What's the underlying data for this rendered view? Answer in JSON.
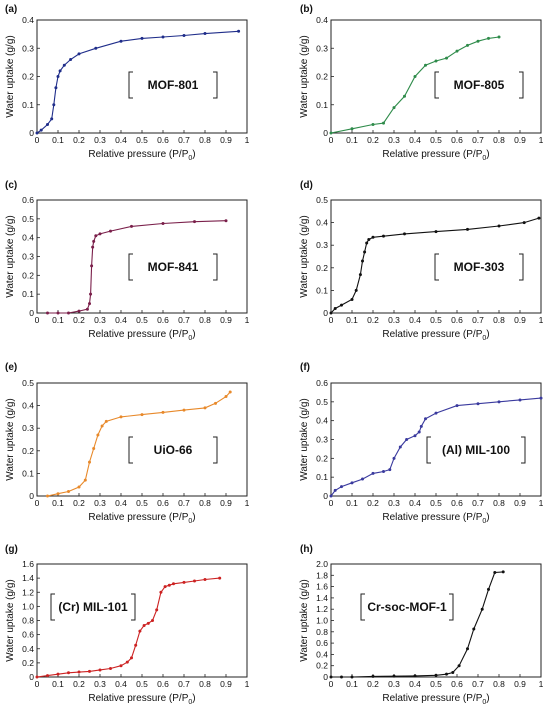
{
  "chart_data": [
    {
      "panel": "(a)",
      "type": "line",
      "label": "MOF-801",
      "color": "#1f2d8a",
      "xlabel": "Relative pressure (P/P",
      "xlabel_sub": "0",
      "xlabel_tail": ")",
      "ylabel": "Water uptake (g/g)",
      "xlim": [
        0,
        1.0
      ],
      "ylim": [
        0,
        0.4
      ],
      "xticks": [
        "0",
        "0.1",
        "0.2",
        "0.3",
        "0.4",
        "0.5",
        "0.6",
        "0.7",
        "0.8",
        "0.9",
        "1"
      ],
      "yticks": [
        "0",
        "0.1",
        "0.2",
        "0.3",
        "0.4"
      ],
      "series": [
        {
          "x": [
            0.0,
            0.02,
            0.05,
            0.07,
            0.08,
            0.09,
            0.1,
            0.11,
            0.13,
            0.16,
            0.2,
            0.28,
            0.4,
            0.5,
            0.6,
            0.7,
            0.8,
            0.96
          ],
          "y": [
            0.0,
            0.01,
            0.03,
            0.05,
            0.1,
            0.16,
            0.2,
            0.22,
            0.24,
            0.26,
            0.28,
            0.3,
            0.325,
            0.335,
            0.34,
            0.345,
            0.352,
            0.36
          ]
        }
      ]
    },
    {
      "panel": "(b)",
      "type": "line",
      "label": "MOF-805",
      "color": "#2e8b4a",
      "xlabel": "Relative pressure (P/P",
      "xlabel_sub": "0",
      "xlabel_tail": ")",
      "ylabel": "Water uptake (g/g)",
      "xlim": [
        0,
        1.0
      ],
      "ylim": [
        0,
        0.4
      ],
      "xticks": [
        "0",
        "0.1",
        "0.2",
        "0.3",
        "0.4",
        "0.5",
        "0.6",
        "0.7",
        "0.8",
        "0.9",
        "1"
      ],
      "yticks": [
        "0",
        "0.1",
        "0.2",
        "0.3",
        "0.4"
      ],
      "series": [
        {
          "x": [
            0.0,
            0.1,
            0.2,
            0.25,
            0.3,
            0.35,
            0.4,
            0.45,
            0.5,
            0.55,
            0.6,
            0.65,
            0.7,
            0.75,
            0.8
          ],
          "y": [
            0.0,
            0.015,
            0.03,
            0.035,
            0.09,
            0.13,
            0.2,
            0.24,
            0.255,
            0.265,
            0.29,
            0.31,
            0.325,
            0.335,
            0.34
          ]
        }
      ]
    },
    {
      "panel": "(c)",
      "type": "line",
      "label": "MOF-841",
      "color": "#7a1f4a",
      "xlabel": "Relative pressure (P/P",
      "xlabel_sub": "0",
      "xlabel_tail": ")",
      "ylabel": "Water uptake (g/g)",
      "xlim": [
        0,
        1.0
      ],
      "ylim": [
        0,
        0.6
      ],
      "xticks": [
        "0",
        "0.1",
        "0.2",
        "0.3",
        "0.4",
        "0.5",
        "0.6",
        "0.7",
        "0.8",
        "0.9",
        "1"
      ],
      "yticks": [
        "0",
        "0.1",
        "0.2",
        "0.3",
        "0.4",
        "0.5",
        "0.6"
      ],
      "series": [
        {
          "x": [
            0.05,
            0.1,
            0.15,
            0.2,
            0.24,
            0.25,
            0.255,
            0.26,
            0.265,
            0.27,
            0.28,
            0.3,
            0.35,
            0.45,
            0.6,
            0.75,
            0.9
          ],
          "y": [
            0.0,
            0.0,
            0.0,
            0.01,
            0.02,
            0.05,
            0.1,
            0.25,
            0.35,
            0.38,
            0.41,
            0.42,
            0.435,
            0.46,
            0.475,
            0.485,
            0.49
          ]
        }
      ]
    },
    {
      "panel": "(d)",
      "type": "line",
      "label": "MOF-303",
      "color": "#111111",
      "xlabel": "Relative pressure (P/P",
      "xlabel_sub": "0",
      "xlabel_tail": ")",
      "ylabel": "Water uptake (g/g)",
      "xlim": [
        0,
        1.0
      ],
      "ylim": [
        0,
        0.5
      ],
      "xticks": [
        "0",
        "0.1",
        "0.2",
        "0.3",
        "0.4",
        "0.5",
        "0.6",
        "0.7",
        "0.8",
        "0.9",
        "1"
      ],
      "yticks": [
        "0",
        "0.1",
        "0.2",
        "0.3",
        "0.4",
        "0.5"
      ],
      "series": [
        {
          "x": [
            0.0,
            0.02,
            0.05,
            0.1,
            0.12,
            0.14,
            0.15,
            0.16,
            0.17,
            0.18,
            0.2,
            0.25,
            0.35,
            0.5,
            0.65,
            0.8,
            0.92,
            0.99
          ],
          "y": [
            0.0,
            0.02,
            0.035,
            0.06,
            0.1,
            0.17,
            0.23,
            0.27,
            0.31,
            0.325,
            0.335,
            0.34,
            0.35,
            0.36,
            0.37,
            0.385,
            0.4,
            0.42
          ]
        }
      ]
    },
    {
      "panel": "(e)",
      "type": "line",
      "label": "UiO-66",
      "color": "#e8892a",
      "xlabel": "Relative pressure (P/P",
      "xlabel_sub": "0",
      "xlabel_tail": ")",
      "ylabel": "Water uptake (g/g)",
      "xlim": [
        0,
        1.0
      ],
      "ylim": [
        0,
        0.5
      ],
      "xticks": [
        "0",
        "0.1",
        "0.2",
        "0.3",
        "0.4",
        "0.5",
        "0.6",
        "0.7",
        "0.8",
        "0.9",
        "1"
      ],
      "yticks": [
        "0",
        "0.1",
        "0.2",
        "0.3",
        "0.4",
        "0.5"
      ],
      "series": [
        {
          "x": [
            0.05,
            0.1,
            0.15,
            0.2,
            0.23,
            0.25,
            0.27,
            0.29,
            0.31,
            0.33,
            0.4,
            0.5,
            0.6,
            0.7,
            0.8,
            0.85,
            0.9,
            0.92
          ],
          "y": [
            0.0,
            0.01,
            0.02,
            0.04,
            0.07,
            0.15,
            0.21,
            0.27,
            0.31,
            0.33,
            0.35,
            0.36,
            0.37,
            0.38,
            0.39,
            0.41,
            0.44,
            0.46
          ]
        }
      ]
    },
    {
      "panel": "(f)",
      "type": "line",
      "label": "(Al) MIL-100",
      "color": "#3a3a9e",
      "xlabel": "Relative pressure (P/P",
      "xlabel_sub": "0",
      "xlabel_tail": ")",
      "ylabel": "Water uptake (g/g)",
      "xlim": [
        0,
        1.0
      ],
      "ylim": [
        0,
        0.6
      ],
      "xticks": [
        "0",
        "0.1",
        "0.2",
        "0.3",
        "0.4",
        "0.5",
        "0.6",
        "0.7",
        "0.8",
        "0.9",
        "1"
      ],
      "yticks": [
        "0",
        "0.1",
        "0.2",
        "0.3",
        "0.4",
        "0.5",
        "0.6"
      ],
      "series": [
        {
          "x": [
            0.0,
            0.02,
            0.05,
            0.1,
            0.15,
            0.2,
            0.25,
            0.28,
            0.3,
            0.33,
            0.36,
            0.4,
            0.42,
            0.43,
            0.45,
            0.5,
            0.6,
            0.7,
            0.8,
            0.9,
            1.0
          ],
          "y": [
            0.0,
            0.03,
            0.05,
            0.07,
            0.09,
            0.12,
            0.13,
            0.14,
            0.2,
            0.26,
            0.3,
            0.32,
            0.34,
            0.37,
            0.41,
            0.44,
            0.48,
            0.49,
            0.5,
            0.51,
            0.52
          ]
        }
      ]
    },
    {
      "panel": "(g)",
      "type": "line",
      "label": "(Cr) MIL-101",
      "color": "#cc2222",
      "xlabel": "Relative pressure (P/P",
      "xlabel_sub": "0",
      "xlabel_tail": ")",
      "ylabel": "Water uptake (g/g)",
      "xlim": [
        0,
        1.0
      ],
      "ylim": [
        0,
        1.6
      ],
      "xticks": [
        "0",
        "0.1",
        "0.2",
        "0.3",
        "0.4",
        "0.5",
        "0.6",
        "0.7",
        "0.8",
        "0.9",
        "1"
      ],
      "yticks": [
        "0",
        "0.2",
        "0.4",
        "0.6",
        "0.8",
        "1.0",
        "1.2",
        "1.4",
        "1.6"
      ],
      "series": [
        {
          "x": [
            0.0,
            0.05,
            0.1,
            0.15,
            0.2,
            0.25,
            0.3,
            0.35,
            0.4,
            0.43,
            0.45,
            0.47,
            0.49,
            0.51,
            0.53,
            0.55,
            0.57,
            0.59,
            0.61,
            0.63,
            0.65,
            0.7,
            0.75,
            0.8,
            0.87
          ],
          "y": [
            0.0,
            0.02,
            0.04,
            0.06,
            0.07,
            0.08,
            0.1,
            0.12,
            0.16,
            0.21,
            0.27,
            0.45,
            0.65,
            0.73,
            0.76,
            0.8,
            0.95,
            1.2,
            1.28,
            1.3,
            1.32,
            1.34,
            1.36,
            1.38,
            1.4
          ]
        }
      ]
    },
    {
      "panel": "(h)",
      "type": "line",
      "label": "Cr-soc-MOF-1",
      "color": "#111111",
      "xlabel": "Relative pressure (P/P",
      "xlabel_sub": "0",
      "xlabel_tail": ")",
      "ylabel": "Water uptake (g/g)",
      "xlim": [
        0,
        1.0
      ],
      "ylim": [
        0,
        2.0
      ],
      "xticks": [
        "0",
        "0.1",
        "0.2",
        "0.3",
        "0.4",
        "0.5",
        "0.6",
        "0.7",
        "0.8",
        "0.9",
        "1"
      ],
      "yticks": [
        "0",
        "0.2",
        "0.4",
        "0.6",
        "0.8",
        "1.0",
        "1.2",
        "1.4",
        "1.6",
        "1.8",
        "2.0"
      ],
      "series": [
        {
          "x": [
            0.0,
            0.05,
            0.1,
            0.2,
            0.3,
            0.4,
            0.5,
            0.55,
            0.58,
            0.61,
            0.65,
            0.68,
            0.72,
            0.75,
            0.78,
            0.82
          ],
          "y": [
            0.0,
            0.0,
            0.0,
            0.01,
            0.015,
            0.02,
            0.03,
            0.05,
            0.08,
            0.2,
            0.5,
            0.85,
            1.2,
            1.55,
            1.85,
            1.86
          ]
        }
      ]
    }
  ]
}
